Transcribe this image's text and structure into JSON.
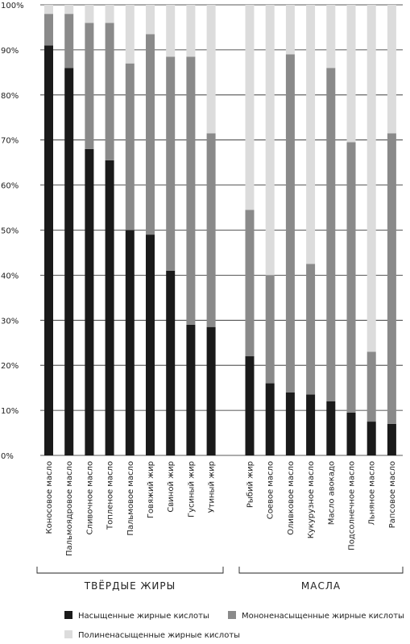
{
  "chart_data": {
    "type": "bar",
    "stacked": true,
    "y_axis": {
      "min": 0,
      "max": 100,
      "tick_labels": [
        "0%",
        "10%",
        "20%",
        "30%",
        "40%",
        "50%",
        "60%",
        "70%",
        "80%",
        "90%",
        "100%"
      ]
    },
    "grid": true,
    "categories": [
      "Коносовое масло",
      "Пальмоядровое масло",
      "Сливочное масло",
      "Топленое масло",
      "Пальмовое масло",
      "Говяжий жир",
      "Свиной жир",
      "Гусиный жир",
      "Утиный жир",
      "Рыбий жир",
      "Соевое масло",
      "Оливковое масло",
      "Кукурузное масло",
      "Масло авокадо",
      "Подсолнечное масло",
      "Льняное масло",
      "Рапсовое масло"
    ],
    "groups": [
      {
        "label": "ТВЁРДЫЕ ЖИРЫ",
        "start": 0,
        "end": 8
      },
      {
        "label": "МАСЛА",
        "start": 9,
        "end": 16
      }
    ],
    "series": [
      {
        "name": "Насыщенные жирные кислоты",
        "color": "#1a1a1a",
        "values": [
          91,
          86,
          68,
          65.5,
          50,
          49,
          41,
          29,
          28.5,
          22,
          16,
          14,
          13.5,
          12,
          9.5,
          7.5,
          7
        ]
      },
      {
        "name": "Мононенасыщенные жирные кислоты",
        "color": "#8a8a8a",
        "values": [
          7,
          12,
          28,
          30.5,
          37,
          44.5,
          47.5,
          59.5,
          43,
          32.5,
          24,
          75,
          29,
          74,
          60,
          15.5,
          64.5
        ]
      },
      {
        "name": "Полиненасыщенные жирные кислоты",
        "color": "#dcdcdc",
        "values": [
          2,
          2,
          4,
          4,
          13,
          6.5,
          11.5,
          11.5,
          28.5,
          45.5,
          60,
          11,
          57.5,
          14,
          30.5,
          77,
          28.5
        ]
      }
    ],
    "legend_position": "bottom"
  }
}
